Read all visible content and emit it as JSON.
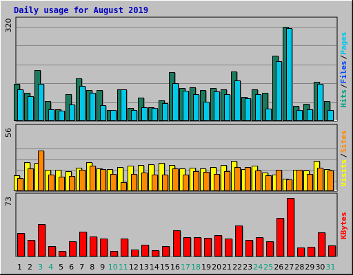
{
  "chart_data": {
    "type": "bar",
    "title": "Daily usage for August 2019",
    "colors": {
      "hits": "#1a7a5e",
      "files": "#00c8e8",
      "visits": "#ffff00",
      "sites": "#ff8800",
      "kbytes": "#ff0000",
      "legend_hits": "#00a080",
      "legend_files": "#0040ff",
      "legend_pages": "#00c8e8",
      "legend_visits": "#ffff00",
      "legend_sites": "#ff8800",
      "legend_kbytes": "#ff0000",
      "legend_sep": "#000000",
      "day_normal": "#000000",
      "day_weekend": "#00a080",
      "title": "#0000c0"
    },
    "days": [
      "1",
      "2",
      "3",
      "4",
      "5",
      "6",
      "7",
      "8",
      "9",
      "10",
      "11",
      "12",
      "13",
      "14",
      "15",
      "16",
      "17",
      "18",
      "19",
      "20",
      "21",
      "22",
      "23",
      "24",
      "25",
      "26",
      "27",
      "28",
      "29",
      "30",
      "31"
    ],
    "weekend": [
      false,
      false,
      true,
      true,
      false,
      false,
      false,
      false,
      false,
      true,
      true,
      false,
      false,
      false,
      false,
      false,
      true,
      true,
      false,
      false,
      false,
      false,
      false,
      true,
      true,
      false,
      false,
      false,
      false,
      false,
      true
    ],
    "panels": [
      {
        "max_label": "320",
        "ymax": 320,
        "legend": [
          {
            "text": "Hits",
            "color_key": "legend_hits"
          },
          {
            "text": "/",
            "color_key": "legend_sep"
          },
          {
            "text": "Files",
            "color_key": "legend_files"
          },
          {
            "text": "/",
            "color_key": "legend_sep"
          },
          {
            "text": "Pages",
            "color_key": "legend_pages"
          }
        ],
        "series": [
          {
            "name": "Hits",
            "color_key": "hits",
            "values": [
              126,
              96,
              172,
              67,
              40,
              90,
              144,
              104,
              106,
              38,
              107,
              45,
              79,
              46,
              69,
              166,
              113,
              114,
              104,
              113,
              108,
              168,
              82,
              108,
              95,
              223,
              320,
              52,
              58,
              132,
              68
            ]
          },
          {
            "name": "Files",
            "color_key": "files",
            "values": [
              108,
              84,
              126,
              40,
              36,
              56,
              119,
              95,
              53,
              37,
              107,
              37,
              46,
              45,
              61,
              129,
              102,
              91,
              66,
              100,
              92,
              137,
              76,
              91,
              41,
              203,
              315,
              38,
              40,
              125,
              37
            ]
          }
        ]
      },
      {
        "max_label": "56",
        "ymax": 56,
        "legend": [
          {
            "text": "Visits",
            "color_key": "legend_visits"
          },
          {
            "text": "/",
            "color_key": "legend_sep"
          },
          {
            "text": "Sites",
            "color_key": "legend_sites"
          }
        ],
        "series": [
          {
            "name": "Visits",
            "color_key": "visits",
            "values": [
              21,
              38,
              37,
              28,
              28,
              26,
              31,
              38,
              30,
              29,
              32,
              33,
              34,
              35,
              37,
              34,
              30,
              31,
              30,
              32,
              34,
              40,
              29,
              33,
              24,
              22,
              16,
              28,
              27,
              40,
              29
            ]
          },
          {
            "name": "Sites",
            "color_key": "sites",
            "values": [
              17,
              30,
              53,
              22,
              19,
              20,
              28,
              33,
              29,
              23,
              12,
              23,
              24,
              22,
              22,
              30,
              22,
              26,
              25,
              23,
              26,
              32,
              32,
              27,
              21,
              28,
              15,
              28,
              23,
              31,
              27
            ]
          }
        ]
      },
      {
        "max_label": "73",
        "ymax": 73,
        "legend": [
          {
            "text": "KBytes",
            "color_key": "legend_kbytes"
          }
        ],
        "series": [
          {
            "name": "KBytes",
            "color_key": "kbytes",
            "values": [
              29,
              21,
              40,
              13,
              7,
              19,
              31,
              25,
              22,
              7,
              22,
              9,
              15,
              8,
              13,
              33,
              24,
              24,
              23,
              27,
              22,
              39,
              21,
              24,
              19,
              48,
              73,
              11,
              12,
              30,
              14
            ]
          }
        ]
      }
    ]
  }
}
